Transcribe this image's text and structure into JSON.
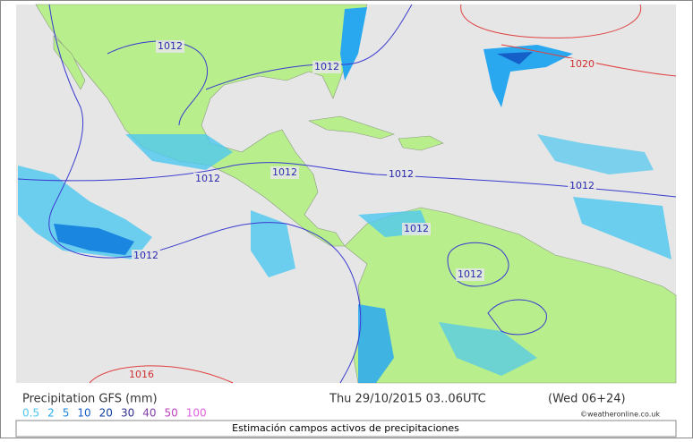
{
  "map": {
    "isobars": [
      {
        "label": 1012
      },
      {
        "label": 1012
      },
      {
        "label": 1012
      },
      {
        "label": 1012
      },
      {
        "label": 1012
      },
      {
        "label": 1012
      },
      {
        "label": 1012
      },
      {
        "label": 1012
      },
      {
        "label": 1012
      },
      {
        "label": 1020
      },
      {
        "label": 1016
      }
    ]
  },
  "legend": {
    "title": "Precipitation GFS (mm)",
    "levels": [
      {
        "value": 0.5,
        "color": "#4dc8f0"
      },
      {
        "value": 2,
        "color": "#29a8f0"
      },
      {
        "value": 5,
        "color": "#1a86e0"
      },
      {
        "value": 10,
        "color": "#1560c8"
      },
      {
        "value": 20,
        "color": "#1040a0"
      },
      {
        "value": 30,
        "color": "#303090"
      },
      {
        "value": 40,
        "color": "#8040a8"
      },
      {
        "value": 50,
        "color": "#c040c0"
      },
      {
        "value": 100,
        "color": "#e060e0"
      }
    ]
  },
  "timestamp": "Thu 29/10/2015 03..06UTC",
  "run": "(Wed 06+24)",
  "credit": "©weatheronline.co.uk",
  "caption": "Estimación campos activos de precipitaciones"
}
